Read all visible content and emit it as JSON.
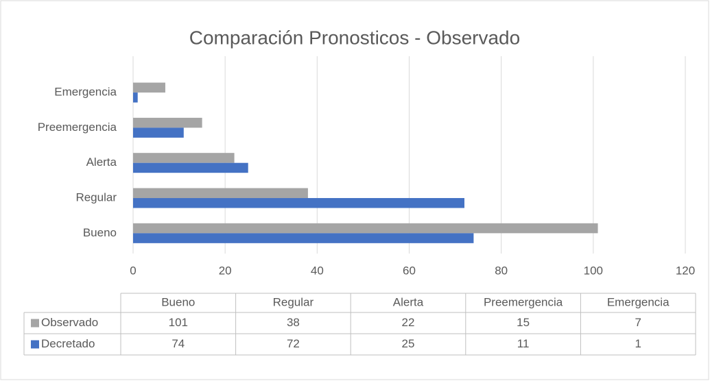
{
  "chart_data": {
    "type": "hbar",
    "title": "Comparación Pronosticos - Observado",
    "categories": [
      "Bueno",
      "Regular",
      "Alerta",
      "Preemergencia",
      "Emergencia"
    ],
    "series": [
      {
        "name": "Observado",
        "color": "#a5a5a5",
        "values": [
          101,
          38,
          22,
          15,
          7
        ]
      },
      {
        "name": "Decretado",
        "color": "#4472c4",
        "values": [
          74,
          72,
          25,
          11,
          1
        ]
      }
    ],
    "xlim": [
      0,
      120
    ],
    "xticks": [
      0,
      20,
      40,
      60,
      80,
      100,
      120
    ],
    "grid": true,
    "data_table": true
  }
}
